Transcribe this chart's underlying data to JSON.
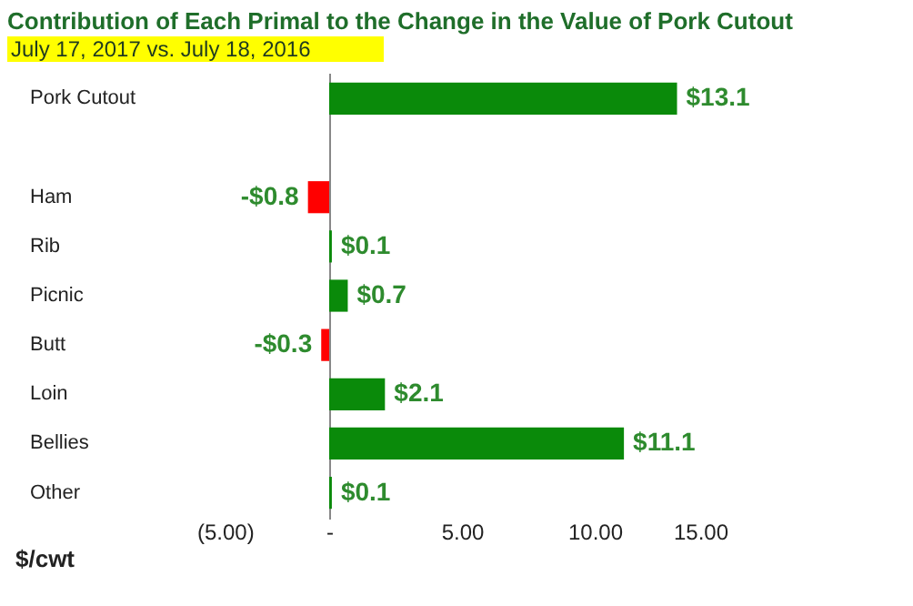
{
  "chart_data": {
    "type": "bar",
    "orientation": "horizontal",
    "title": "Contribution of Each Primal to the Change in the Value of Pork Cutout",
    "subtitle": "July 17, 2017 vs. July 18, 2016",
    "xlabel": "$/cwt",
    "categories": [
      "Pork Cutout",
      null,
      "Ham",
      "Rib",
      "Picnic",
      "Butt",
      "Loin",
      "Bellies",
      "Other"
    ],
    "values": [
      13.1,
      null,
      -0.8,
      0.1,
      0.7,
      -0.3,
      2.1,
      11.1,
      0.1
    ],
    "colors": [
      "#0a8a0a",
      "#0a8a0a",
      "#ff0000",
      "#0a8a0a",
      "#0a8a0a",
      "#ff0000",
      "#0a8a0a",
      "#0a8a0a",
      "#0a8a0a"
    ],
    "value_labels": [
      "$13.1",
      null,
      "-$0.8",
      "$0.1",
      "$0.7",
      "-$0.3",
      "$2.1",
      "$11.1",
      "$0.1"
    ],
    "xlim": [
      -5,
      15
    ],
    "xticks": [
      {
        "value": -5,
        "label": "(5.00)"
      },
      {
        "value": 0,
        "label": "-"
      },
      {
        "value": 5,
        "label": "5.00"
      },
      {
        "value": 10,
        "label": "10.00"
      },
      {
        "value": 15,
        "label": "15.00"
      }
    ]
  }
}
